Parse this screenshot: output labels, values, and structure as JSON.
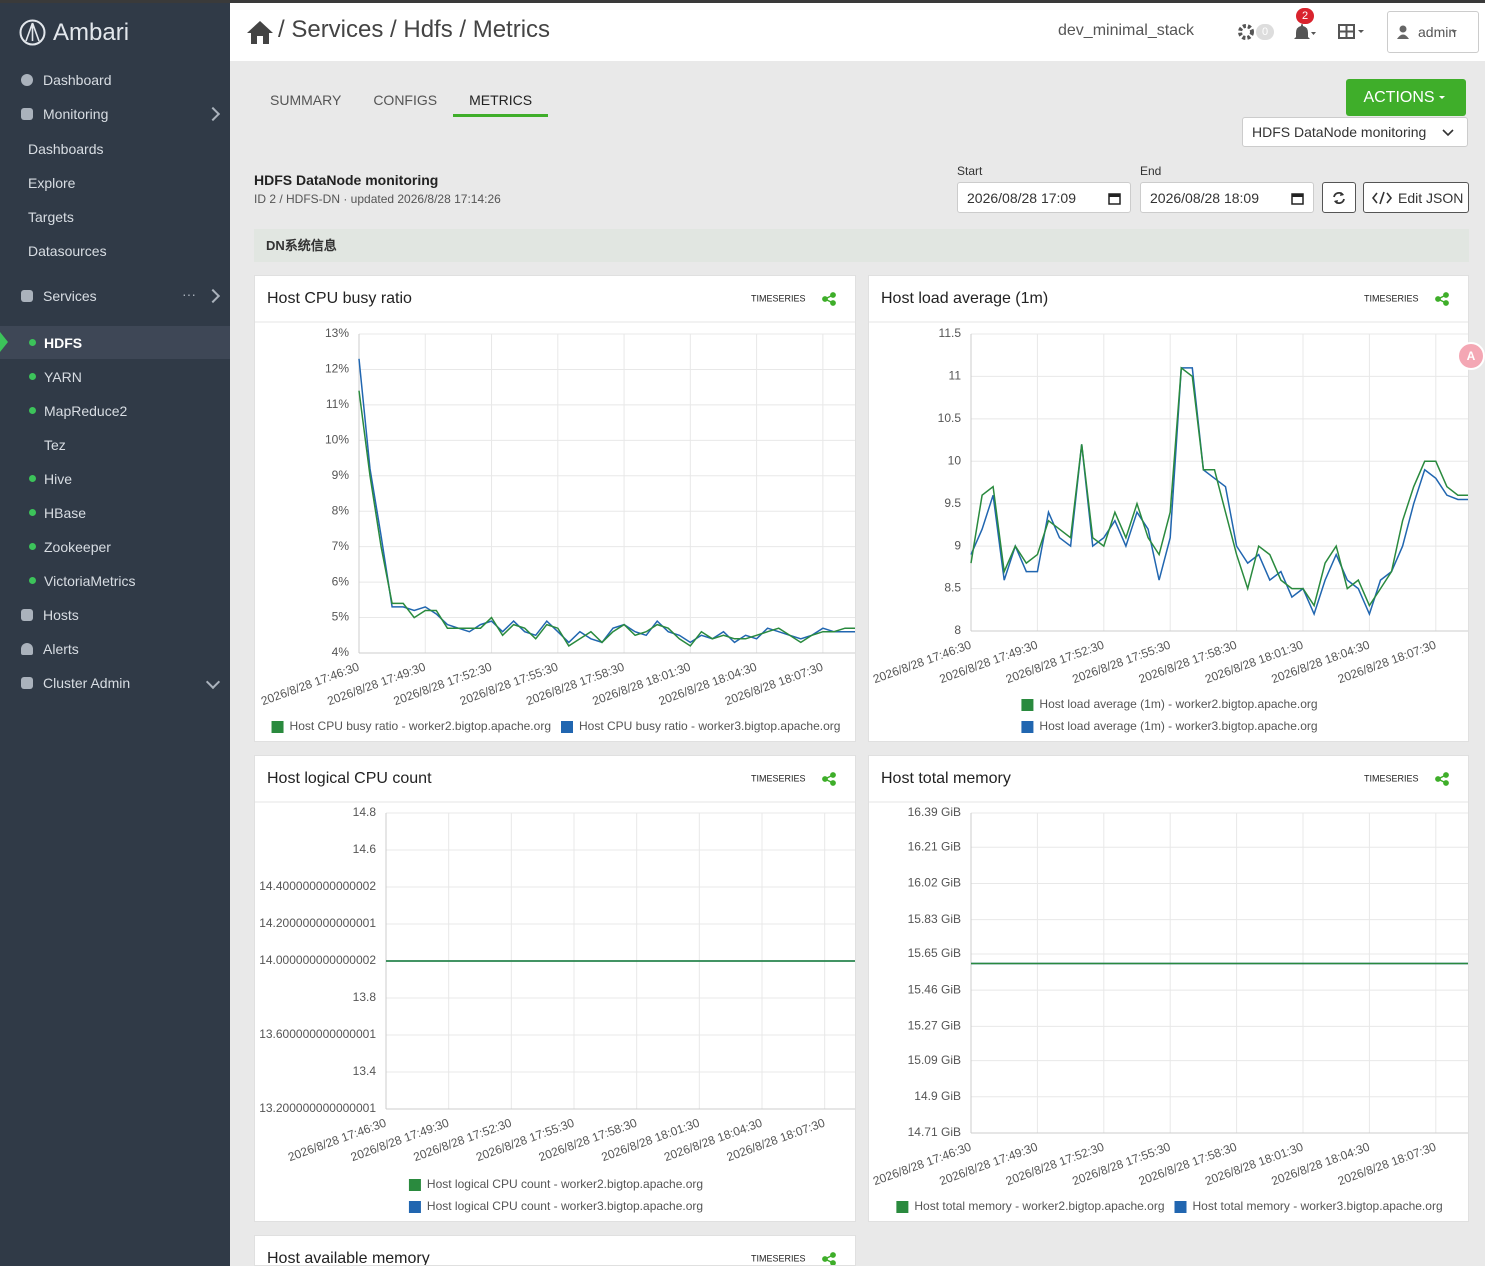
{
  "sidebar": {
    "brand": "Ambari",
    "items": [
      "Dashboard",
      "Monitoring",
      "Dashboards",
      "Explore",
      "Targets",
      "Datasources",
      "Services",
      "HDFS",
      "YARN",
      "MapReduce2",
      "Tez",
      "Hive",
      "HBase",
      "Zookeeper",
      "VictoriaMetrics",
      "Hosts",
      "Alerts",
      "Cluster Admin"
    ]
  },
  "header": {
    "breadcrumb": "/ Services / Hdfs / Metrics",
    "stack": "dev_minimal_stack",
    "ops_count": 0,
    "alert_count": 2,
    "user": "admin"
  },
  "tabs": [
    "SUMMARY",
    "CONFIGS",
    "METRICS"
  ],
  "active_tab_index": 2,
  "toolbar": {
    "actions": "ACTIONS",
    "dashboard_select": "HDFS DataNode monitoring"
  },
  "dashboard": {
    "title": "HDFS DataNode monitoring",
    "meta": "ID 2 / HDFS-DN · updated 2026/8/28 17:14:26",
    "start_label": "Start",
    "start_value": "2026/08/28 17:09",
    "end_label": "End",
    "end_value": "2026/08/28 18:09",
    "edit_json": "Edit JSON",
    "section": "DN系统信息"
  },
  "panels": [
    {
      "title": "Host CPU busy ratio",
      "badge": "TIMESERIES",
      "chart_data": {
        "type": "line",
        "grid": true,
        "legend": "bottom",
        "categories": [
          "2026/8/28 17:46:30",
          null,
          null,
          null,
          null,
          null,
          "2026/8/28 17:49:30",
          null,
          null,
          null,
          null,
          null,
          "2026/8/28 17:52:30",
          null,
          null,
          null,
          null,
          null,
          "2026/8/28 17:55:30",
          null,
          null,
          null,
          null,
          null,
          "2026/8/28 17:58:30",
          null,
          null,
          null,
          null,
          null,
          "2026/8/28 18:01:30",
          null,
          null,
          null,
          null,
          null,
          "2026/8/28 18:04:30",
          null,
          null,
          null,
          null,
          null,
          "2026/8/28 18:07:30",
          null,
          null,
          null
        ],
        "ylim": [
          4,
          13
        ],
        "yticks": [
          {
            "value": 4,
            "label": "4%"
          },
          {
            "value": 5,
            "label": "5%"
          },
          {
            "value": 6,
            "label": "6%"
          },
          {
            "value": 7,
            "label": "7%"
          },
          {
            "value": 8,
            "label": "8%"
          },
          {
            "value": 9,
            "label": "9%"
          },
          {
            "value": 10,
            "label": "10%"
          },
          {
            "value": 11,
            "label": "11%"
          },
          {
            "value": 12,
            "label": "12%"
          },
          {
            "value": 13,
            "label": "13%"
          }
        ],
        "series": [
          {
            "name": "Host CPU busy ratio - worker2.bigtop.apache.org",
            "color": "#2a8a3e",
            "values": [
              11.4,
              9.0,
              7.0,
              5.4,
              5.4,
              5.0,
              5.2,
              5.2,
              4.7,
              4.7,
              4.7,
              4.7,
              5.0,
              4.5,
              4.8,
              4.7,
              4.4,
              4.8,
              4.7,
              4.2,
              4.4,
              4.6,
              4.3,
              4.6,
              4.8,
              4.5,
              4.6,
              4.8,
              4.7,
              4.4,
              4.2,
              4.6,
              4.4,
              4.5,
              4.4,
              4.4,
              4.5,
              4.6,
              4.7,
              4.5,
              4.3,
              4.5,
              4.6,
              4.6,
              4.7,
              4.7
            ]
          },
          {
            "name": "Host CPU busy ratio - worker3.bigtop.apache.org",
            "color": "#2166b0",
            "values": [
              12.3,
              9.2,
              7.3,
              5.3,
              5.3,
              5.2,
              5.3,
              5.1,
              4.8,
              4.7,
              4.6,
              4.8,
              4.9,
              4.6,
              4.9,
              4.6,
              4.5,
              4.9,
              4.6,
              4.3,
              4.6,
              4.4,
              4.3,
              4.7,
              4.8,
              4.6,
              4.5,
              4.9,
              4.6,
              4.5,
              4.3,
              4.5,
              4.4,
              4.6,
              4.3,
              4.5,
              4.4,
              4.7,
              4.6,
              4.5,
              4.4,
              4.5,
              4.7,
              4.6,
              4.6,
              4.6
            ]
          }
        ]
      }
    },
    {
      "title": "Host load average (1m)",
      "badge": "TIMESERIES",
      "chart_data": {
        "type": "line",
        "grid": true,
        "legend": "bottom-stacked",
        "categories": [
          "2026/8/28 17:46:30",
          null,
          null,
          null,
          null,
          null,
          "2026/8/28 17:49:30",
          null,
          null,
          null,
          null,
          null,
          "2026/8/28 17:52:30",
          null,
          null,
          null,
          null,
          null,
          "2026/8/28 17:55:30",
          null,
          null,
          null,
          null,
          null,
          "2026/8/28 17:58:30",
          null,
          null,
          null,
          null,
          null,
          "2026/8/28 18:01:30",
          null,
          null,
          null,
          null,
          null,
          "2026/8/28 18:04:30",
          null,
          null,
          null,
          null,
          null,
          "2026/8/28 18:07:30",
          null,
          null,
          null
        ],
        "ylim": [
          8,
          11.5
        ],
        "yticks": [
          8,
          8.5,
          9,
          9.5,
          10,
          10.5,
          11,
          11.5
        ],
        "series": [
          {
            "name": "Host load average (1m) - worker2.bigtop.apache.org",
            "color": "#2a8a3e",
            "values": [
              8.8,
              9.6,
              9.7,
              8.7,
              9.0,
              8.8,
              8.9,
              9.3,
              9.2,
              9.1,
              10.2,
              9.1,
              9.0,
              9.4,
              9.1,
              9.5,
              9.1,
              8.9,
              9.4,
              11.1,
              11.0,
              9.9,
              9.9,
              9.4,
              8.9,
              8.5,
              9.0,
              8.9,
              8.6,
              8.5,
              8.5,
              8.3,
              8.8,
              9.0,
              8.5,
              8.6,
              8.3,
              8.5,
              8.7,
              9.3,
              9.7,
              10.0,
              10.0,
              9.7,
              9.6,
              9.6
            ]
          },
          {
            "name": "Host load average (1m) - worker3.bigtop.apache.org",
            "color": "#2166b0",
            "values": [
              8.9,
              9.2,
              9.6,
              8.6,
              9.0,
              8.7,
              8.7,
              9.4,
              9.1,
              9.0,
              10.2,
              9.0,
              9.1,
              9.3,
              9.0,
              9.4,
              9.2,
              8.6,
              9.1,
              11.1,
              11.1,
              9.9,
              9.8,
              9.7,
              9.0,
              8.8,
              8.9,
              8.6,
              8.7,
              8.4,
              8.5,
              8.2,
              8.6,
              8.9,
              8.6,
              8.5,
              8.2,
              8.6,
              8.7,
              9.0,
              9.5,
              9.9,
              9.8,
              9.6,
              9.55,
              9.55
            ]
          }
        ]
      }
    },
    {
      "title": "Host logical CPU count",
      "badge": "TIMESERIES",
      "chart_data": {
        "type": "line",
        "grid": true,
        "legend": "bottom-stacked",
        "categories": [
          "2026/8/28 17:46:30",
          null,
          null,
          null,
          null,
          null,
          "2026/8/28 17:49:30",
          null,
          null,
          null,
          null,
          null,
          "2026/8/28 17:52:30",
          null,
          null,
          null,
          null,
          null,
          "2026/8/28 17:55:30",
          null,
          null,
          null,
          null,
          null,
          "2026/8/28 17:58:30",
          null,
          null,
          null,
          null,
          null,
          "2026/8/28 18:01:30",
          null,
          null,
          null,
          null,
          null,
          "2026/8/28 18:04:30",
          null,
          null,
          null,
          null,
          null,
          "2026/8/28 18:07:30",
          null,
          null,
          null
        ],
        "ylim": [
          13.2,
          14.8
        ],
        "yticks": [
          {
            "value": 13.2,
            "label": "13.200000000000001"
          },
          13.4,
          {
            "value": 13.6,
            "label": "13.600000000000001"
          },
          13.8,
          {
            "value": 14,
            "label": "14.000000000000002"
          },
          {
            "value": 14.2,
            "label": "14.200000000000001"
          },
          {
            "value": 14.4,
            "label": "14.400000000000002"
          },
          14.6,
          14.8
        ],
        "series": [
          {
            "name": "Host logical CPU count - worker2.bigtop.apache.org",
            "color": "#2a8a3e",
            "values": [
              14,
              14,
              14,
              14,
              14,
              14,
              14,
              14,
              14,
              14,
              14,
              14,
              14,
              14,
              14,
              14,
              14,
              14,
              14,
              14,
              14,
              14,
              14,
              14,
              14,
              14,
              14,
              14,
              14,
              14,
              14,
              14,
              14,
              14,
              14,
              14,
              14,
              14,
              14,
              14,
              14,
              14,
              14,
              14,
              14,
              14
            ]
          },
          {
            "name": "Host logical CPU count - worker3.bigtop.apache.org",
            "color": "#2166b0",
            "values": [
              14,
              14,
              14,
              14,
              14,
              14,
              14,
              14,
              14,
              14,
              14,
              14,
              14,
              14,
              14,
              14,
              14,
              14,
              14,
              14,
              14,
              14,
              14,
              14,
              14,
              14,
              14,
              14,
              14,
              14,
              14,
              14,
              14,
              14,
              14,
              14,
              14,
              14,
              14,
              14,
              14,
              14,
              14,
              14,
              14,
              14
            ]
          }
        ]
      }
    },
    {
      "title": "Host total memory",
      "badge": "TIMESERIES",
      "chart_data": {
        "type": "line",
        "grid": true,
        "legend": "bottom",
        "categories": [
          "2026/8/28 17:46:30",
          null,
          null,
          null,
          null,
          null,
          "2026/8/28 17:49:30",
          null,
          null,
          null,
          null,
          null,
          "2026/8/28 17:52:30",
          null,
          null,
          null,
          null,
          null,
          "2026/8/28 17:55:30",
          null,
          null,
          null,
          null,
          null,
          "2026/8/28 17:58:30",
          null,
          null,
          null,
          null,
          null,
          "2026/8/28 18:01:30",
          null,
          null,
          null,
          null,
          null,
          "2026/8/28 18:04:30",
          null,
          null,
          null,
          null,
          null,
          "2026/8/28 18:07:30",
          null,
          null,
          null
        ],
        "ylim": [
          14.71,
          16.39
        ],
        "yticks": [
          {
            "value": 14.71,
            "label": "14.71 GiB"
          },
          {
            "value": 14.9,
            "label": "14.9 GiB"
          },
          {
            "value": 15.09,
            "label": "15.09 GiB"
          },
          {
            "value": 15.27,
            "label": "15.27 GiB"
          },
          {
            "value": 15.46,
            "label": "15.46 GiB"
          },
          {
            "value": 15.65,
            "label": "15.65 GiB"
          },
          {
            "value": 15.83,
            "label": "15.83 GiB"
          },
          {
            "value": 16.02,
            "label": "16.02 GiB"
          },
          {
            "value": 16.21,
            "label": "16.21 GiB"
          },
          {
            "value": 16.39,
            "label": "16.39 GiB"
          }
        ],
        "series": [
          {
            "name": "Host total memory - worker2.bigtop.apache.org",
            "color": "#2a8a3e",
            "values": [
              15.6,
              15.6,
              15.6,
              15.6,
              15.6,
              15.6,
              15.6,
              15.6,
              15.6,
              15.6,
              15.6,
              15.6,
              15.6,
              15.6,
              15.6,
              15.6,
              15.6,
              15.6,
              15.6,
              15.6,
              15.6,
              15.6,
              15.6,
              15.6,
              15.6,
              15.6,
              15.6,
              15.6,
              15.6,
              15.6,
              15.6,
              15.6,
              15.6,
              15.6,
              15.6,
              15.6,
              15.6,
              15.6,
              15.6,
              15.6,
              15.6,
              15.6,
              15.6,
              15.6,
              15.6,
              15.6
            ]
          },
          {
            "name": "Host total memory - worker3.bigtop.apache.org",
            "color": "#2166b0",
            "values": [
              15.6,
              15.6,
              15.6,
              15.6,
              15.6,
              15.6,
              15.6,
              15.6,
              15.6,
              15.6,
              15.6,
              15.6,
              15.6,
              15.6,
              15.6,
              15.6,
              15.6,
              15.6,
              15.6,
              15.6,
              15.6,
              15.6,
              15.6,
              15.6,
              15.6,
              15.6,
              15.6,
              15.6,
              15.6,
              15.6,
              15.6,
              15.6,
              15.6,
              15.6,
              15.6,
              15.6,
              15.6,
              15.6,
              15.6,
              15.6,
              15.6,
              15.6,
              15.6,
              15.6,
              15.6,
              15.6
            ]
          }
        ]
      }
    },
    {
      "title": "Host available memory",
      "badge": "TIMESERIES"
    }
  ]
}
